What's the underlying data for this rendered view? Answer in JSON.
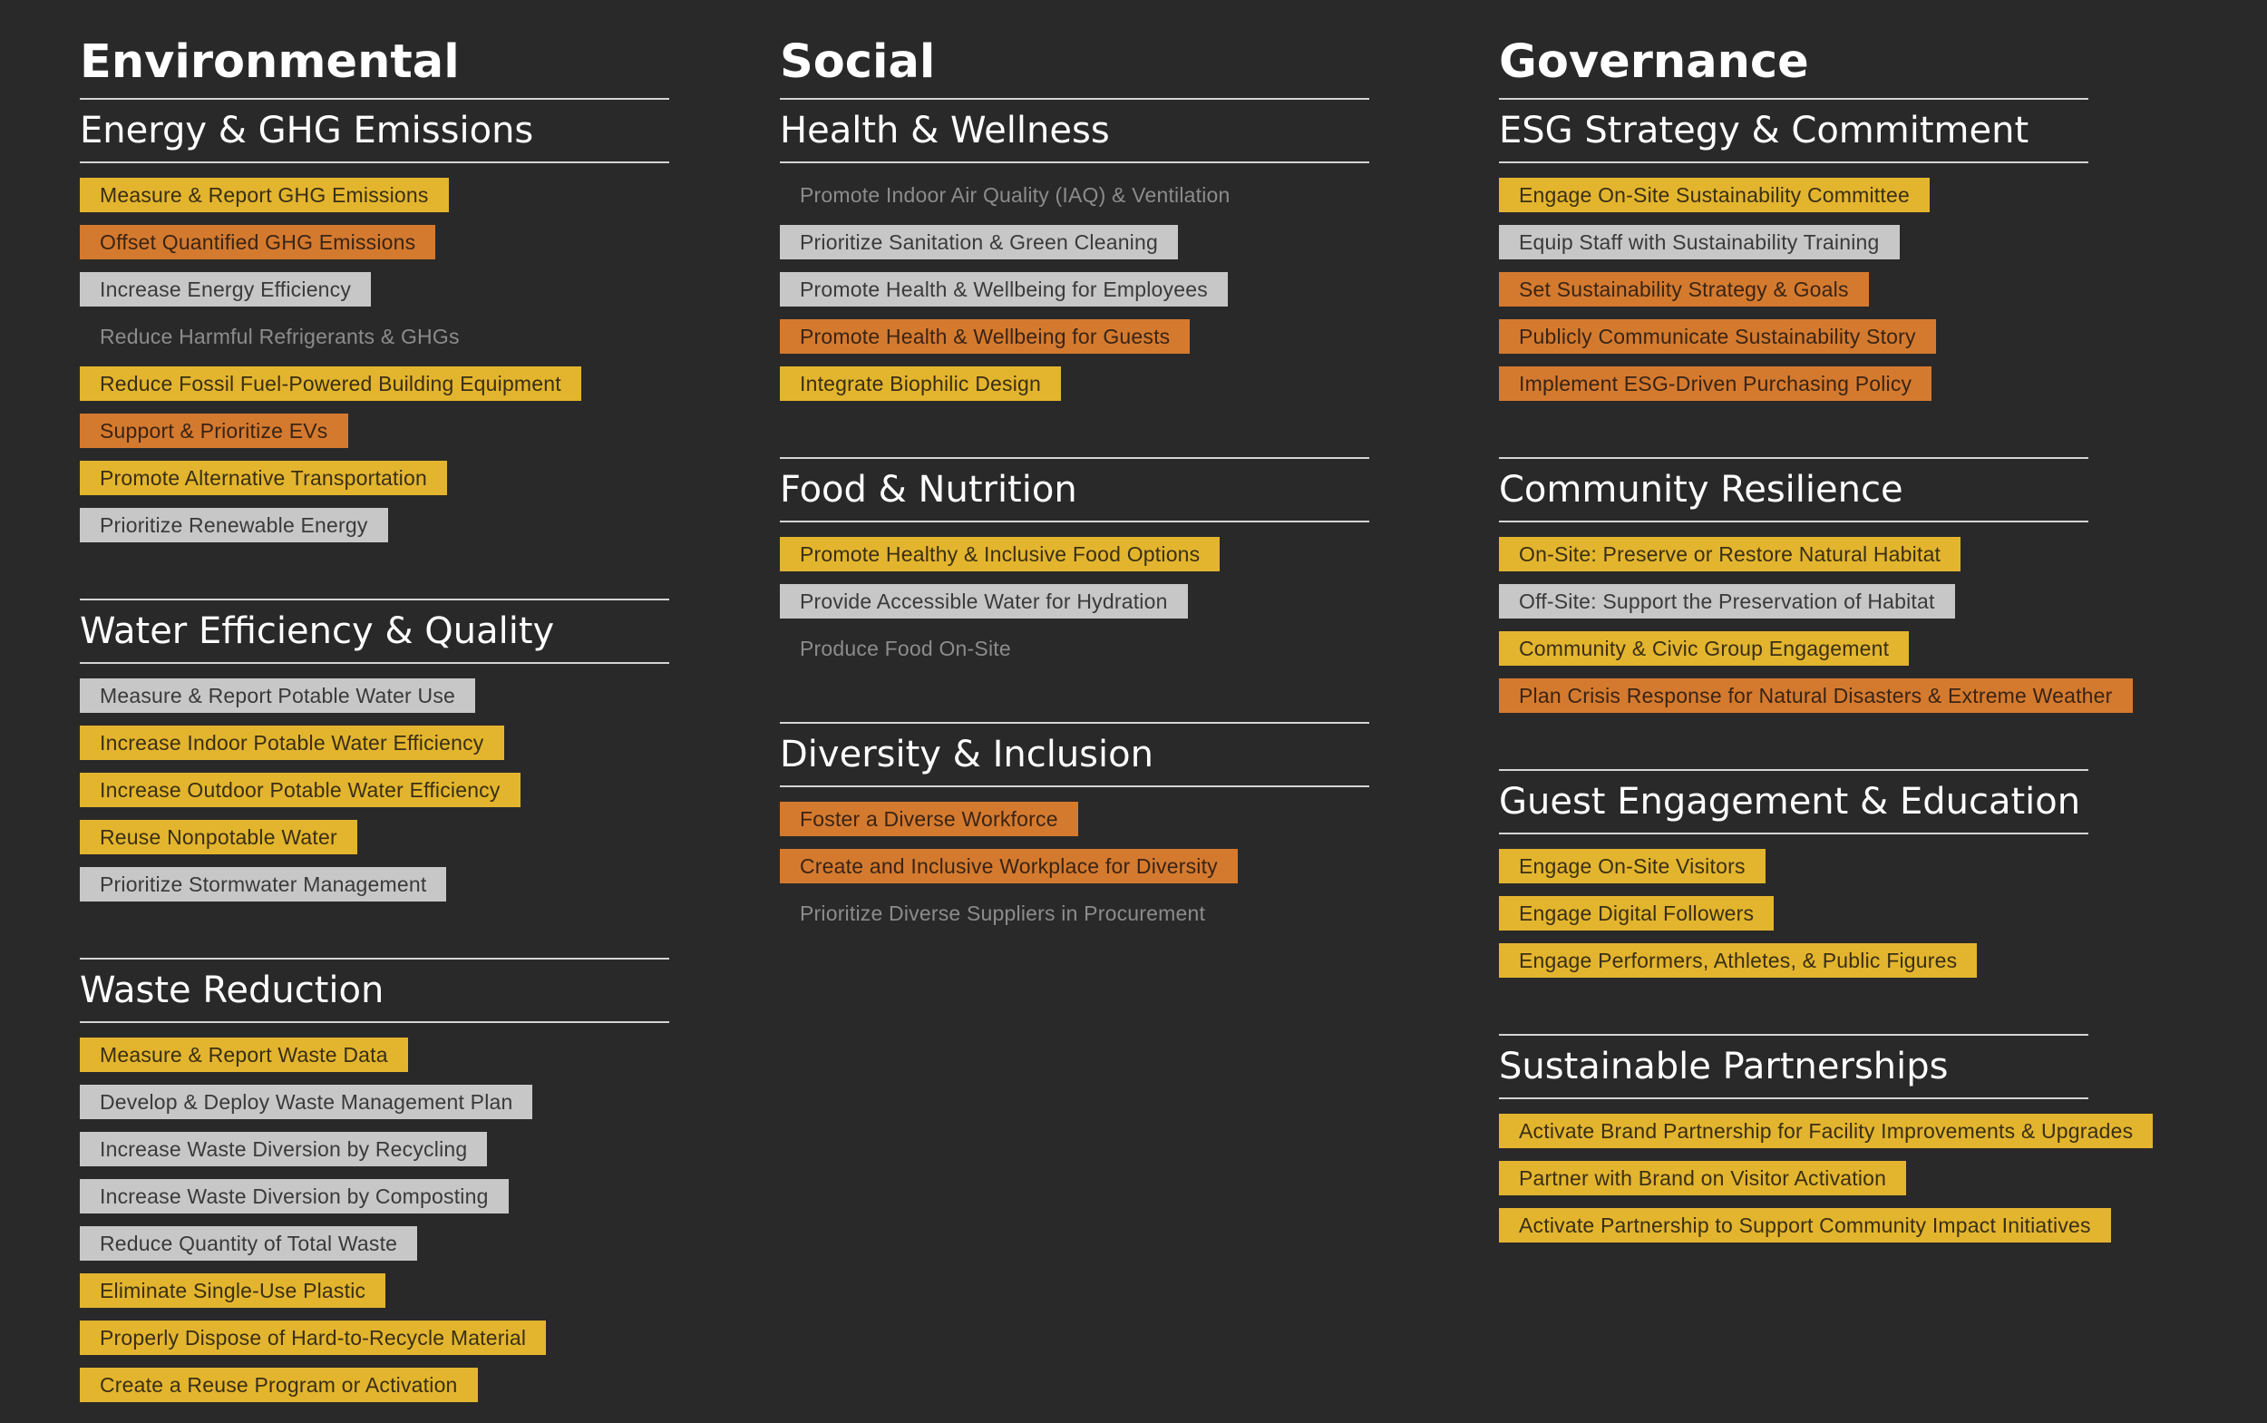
{
  "columns": [
    {
      "title": "Environmental",
      "sections": [
        {
          "title": "Energy & GHG Emissions",
          "items": [
            {
              "label": "Measure & Report GHG Emissions",
              "status": "yellow"
            },
            {
              "label": "Offset Quantified GHG Emissions",
              "status": "orange"
            },
            {
              "label": "Increase Energy Efficiency",
              "status": "gray"
            },
            {
              "label": "Reduce Harmful Refrigerants & GHGs",
              "status": "none"
            },
            {
              "label": "Reduce Fossil Fuel-Powered Building Equipment",
              "status": "yellow"
            },
            {
              "label": "Support & Prioritize EVs",
              "status": "orange"
            },
            {
              "label": "Promote Alternative Transportation",
              "status": "yellow"
            },
            {
              "label": "Prioritize Renewable Energy",
              "status": "gray"
            }
          ]
        },
        {
          "title": "Water Efficiency & Quality",
          "items": [
            {
              "label": "Measure & Report Potable Water Use",
              "status": "gray"
            },
            {
              "label": "Increase Indoor Potable Water Efficiency",
              "status": "yellow"
            },
            {
              "label": "Increase Outdoor Potable Water Efficiency",
              "status": "yellow"
            },
            {
              "label": "Reuse Nonpotable Water",
              "status": "yellow"
            },
            {
              "label": "Prioritize Stormwater Management",
              "status": "gray"
            }
          ]
        },
        {
          "title": "Waste Reduction",
          "items": [
            {
              "label": "Measure & Report Waste Data",
              "status": "yellow"
            },
            {
              "label": "Develop & Deploy Waste Management Plan",
              "status": "gray"
            },
            {
              "label": "Increase Waste Diversion by Recycling",
              "status": "gray"
            },
            {
              "label": "Increase Waste Diversion by Composting",
              "status": "gray"
            },
            {
              "label": "Reduce Quantity of Total Waste",
              "status": "gray"
            },
            {
              "label": "Eliminate Single-Use Plastic",
              "status": "yellow"
            },
            {
              "label": "Properly Dispose of Hard-to-Recycle Material",
              "status": "yellow"
            },
            {
              "label": "Create a Reuse Program or Activation",
              "status": "yellow"
            }
          ]
        }
      ]
    },
    {
      "title": "Social",
      "sections": [
        {
          "title": "Health & Wellness",
          "items": [
            {
              "label": "Promote Indoor Air Quality (IAQ) & Ventilation",
              "status": "none"
            },
            {
              "label": "Prioritize Sanitation & Green Cleaning",
              "status": "gray"
            },
            {
              "label": "Promote Health & Wellbeing for Employees",
              "status": "gray"
            },
            {
              "label": "Promote Health & Wellbeing for Guests",
              "status": "orange"
            },
            {
              "label": "Integrate Biophilic Design",
              "status": "yellow"
            }
          ]
        },
        {
          "title": "Food & Nutrition",
          "items": [
            {
              "label": "Promote Healthy & Inclusive Food Options",
              "status": "yellow"
            },
            {
              "label": "Provide Accessible Water for Hydration",
              "status": "gray"
            },
            {
              "label": "Produce Food On-Site",
              "status": "none"
            }
          ]
        },
        {
          "title": "Diversity & Inclusion",
          "items": [
            {
              "label": "Foster a Diverse Workforce",
              "status": "orange"
            },
            {
              "label": "Create and Inclusive Workplace for Diversity",
              "status": "orange"
            },
            {
              "label": "Prioritize Diverse Suppliers in Procurement",
              "status": "none"
            }
          ]
        }
      ]
    },
    {
      "title": "Governance",
      "sections": [
        {
          "title": "ESG Strategy & Commitment",
          "items": [
            {
              "label": "Engage On-Site Sustainability Committee",
              "status": "yellow"
            },
            {
              "label": "Equip Staff with Sustainability Training",
              "status": "gray"
            },
            {
              "label": "Set Sustainability Strategy & Goals",
              "status": "orange"
            },
            {
              "label": "Publicly Communicate Sustainability Story",
              "status": "orange"
            },
            {
              "label": "Implement ESG-Driven Purchasing Policy",
              "status": "orange"
            }
          ]
        },
        {
          "title": "Community Resilience",
          "items": [
            {
              "label": "On-Site: Preserve or Restore Natural Habitat",
              "status": "yellow"
            },
            {
              "label": "Off-Site: Support the Preservation of Habitat",
              "status": "gray"
            },
            {
              "label": "Community & Civic Group Engagement",
              "status": "yellow"
            },
            {
              "label": "Plan Crisis Response for Natural Disasters & Extreme Weather",
              "status": "orange"
            }
          ]
        },
        {
          "title": "Guest Engagement & Education",
          "items": [
            {
              "label": "Engage On-Site Visitors",
              "status": "yellow"
            },
            {
              "label": "Engage Digital Followers",
              "status": "yellow"
            },
            {
              "label": "Engage Performers, Athletes, & Public Figures",
              "status": "yellow"
            }
          ]
        },
        {
          "title": "Sustainable Partnerships",
          "items": [
            {
              "label": "Activate Brand Partnership for Facility Improvements & Upgrades",
              "status": "yellow"
            },
            {
              "label": "Partner with Brand on Visitor Activation",
              "status": "yellow"
            },
            {
              "label": "Activate Partnership to Support Community Impact Initiatives",
              "status": "yellow"
            }
          ]
        }
      ]
    }
  ],
  "colors": {
    "background": "#2a2929",
    "yellow": "#e3b52e",
    "orange": "#d47a2f",
    "gray": "#c7c7c7",
    "text": "#ffffff"
  }
}
